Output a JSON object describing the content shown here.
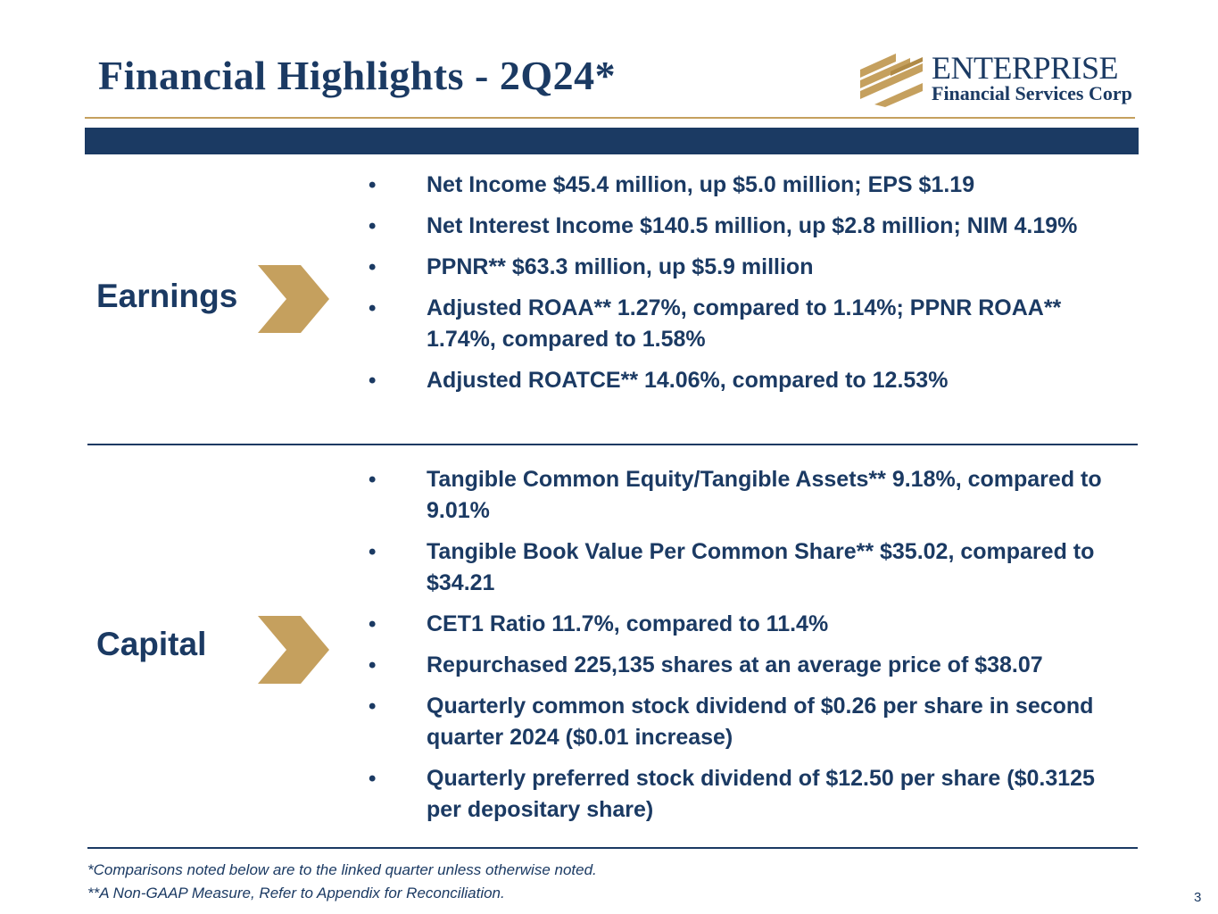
{
  "slide": {
    "title": "Financial Highlights - 2Q24*",
    "page_number": "3"
  },
  "logo": {
    "name": "ENTERPRISE",
    "subtitle": "Financial Services Corp",
    "mark_icon": "stacked-gold-bars-logo",
    "mark_color": "#c5a05e"
  },
  "colors": {
    "navy": "#1b3a63",
    "gold": "#c5a05e"
  },
  "sections": [
    {
      "label": "Earnings",
      "icon": "chevron-right-icon",
      "bullets": [
        "Net Income $45.4 million, up $5.0 million; EPS $1.19",
        "Net Interest Income $140.5 million, up $2.8 million; NIM 4.19%",
        "PPNR** $63.3 million, up $5.9 million",
        "Adjusted ROAA** 1.27%, compared to 1.14%; PPNR ROAA** 1.74%, compared to 1.58%",
        "Adjusted ROATCE** 14.06%, compared to 12.53%"
      ]
    },
    {
      "label": "Capital",
      "icon": "chevron-right-icon",
      "bullets": [
        "Tangible Common Equity/Tangible Assets** 9.18%, compared to 9.01%",
        "Tangible Book Value Per Common Share** $35.02, compared to $34.21",
        "CET1 Ratio 11.7%, compared to 11.4%",
        "Repurchased 225,135 shares at an average price of $38.07",
        "Quarterly common stock dividend of $0.26 per share in second quarter 2024 ($0.01 increase)",
        "Quarterly preferred stock dividend of $12.50 per share ($0.3125 per depositary share)"
      ]
    }
  ],
  "bullet_symbol": "•",
  "footnotes": [
    "*Comparisons noted below are to the linked quarter unless otherwise noted.",
    "**A Non-GAAP Measure, Refer to Appendix for Reconciliation."
  ]
}
